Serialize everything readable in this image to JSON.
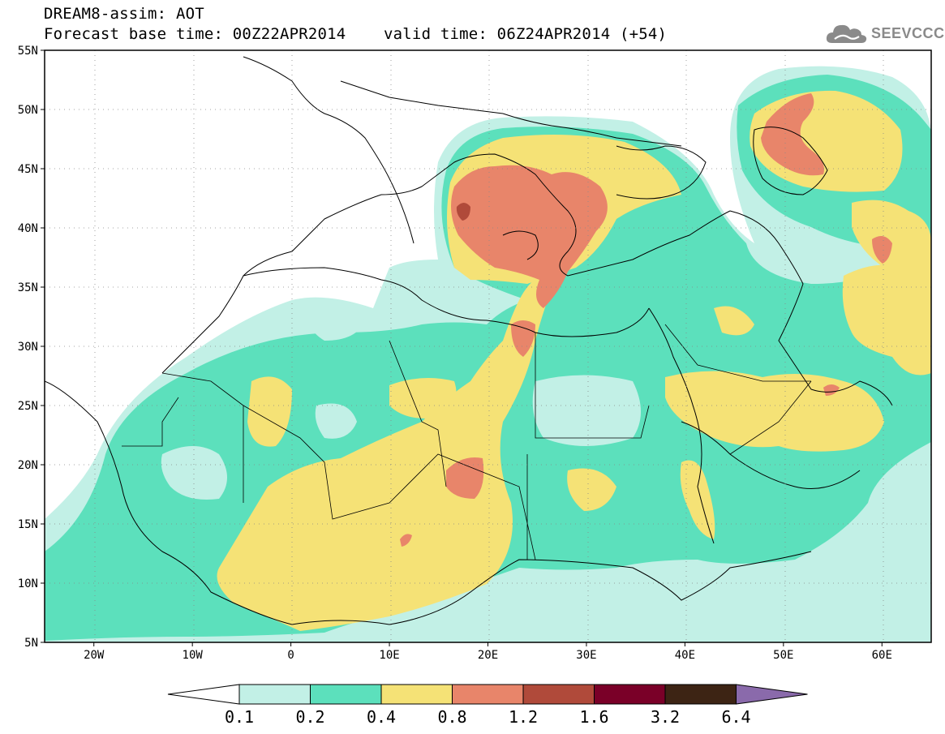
{
  "header": {
    "title": "DREAM8-assim: AOT",
    "base_time_label": "Forecast base time: 00Z22APR2014",
    "valid_time_label": "valid time: 06Z24APR2014 (+54)",
    "logo_text": "SEEVCCC",
    "logo_icon": "cloud-icon"
  },
  "map": {
    "projection": "lat-lon",
    "lon_range": [
      -25,
      65
    ],
    "lat_range": [
      5,
      55
    ],
    "gridlines": "dotted",
    "lat_labels": [
      "55N",
      "50N",
      "45N",
      "40N",
      "35N",
      "30N",
      "25N",
      "20N",
      "15N",
      "10N",
      "5N"
    ],
    "lon_labels": [
      "20W",
      "10W",
      "0",
      "10E",
      "20E",
      "30E",
      "40E",
      "50E",
      "60E"
    ],
    "ocean_color": "#ffffff",
    "coastline_color": "#000000"
  },
  "colorbar": {
    "labels": [
      "0.1",
      "0.2",
      "0.4",
      "0.8",
      "1.2",
      "1.6",
      "3.2",
      "6.4"
    ],
    "colors": [
      "#ffffff",
      "#c2f0e6",
      "#5ce0bc",
      "#f5e276",
      "#e8856a",
      "#b04a3a",
      "#7a0028",
      "#3d2414",
      "#8a6aab"
    ]
  }
}
